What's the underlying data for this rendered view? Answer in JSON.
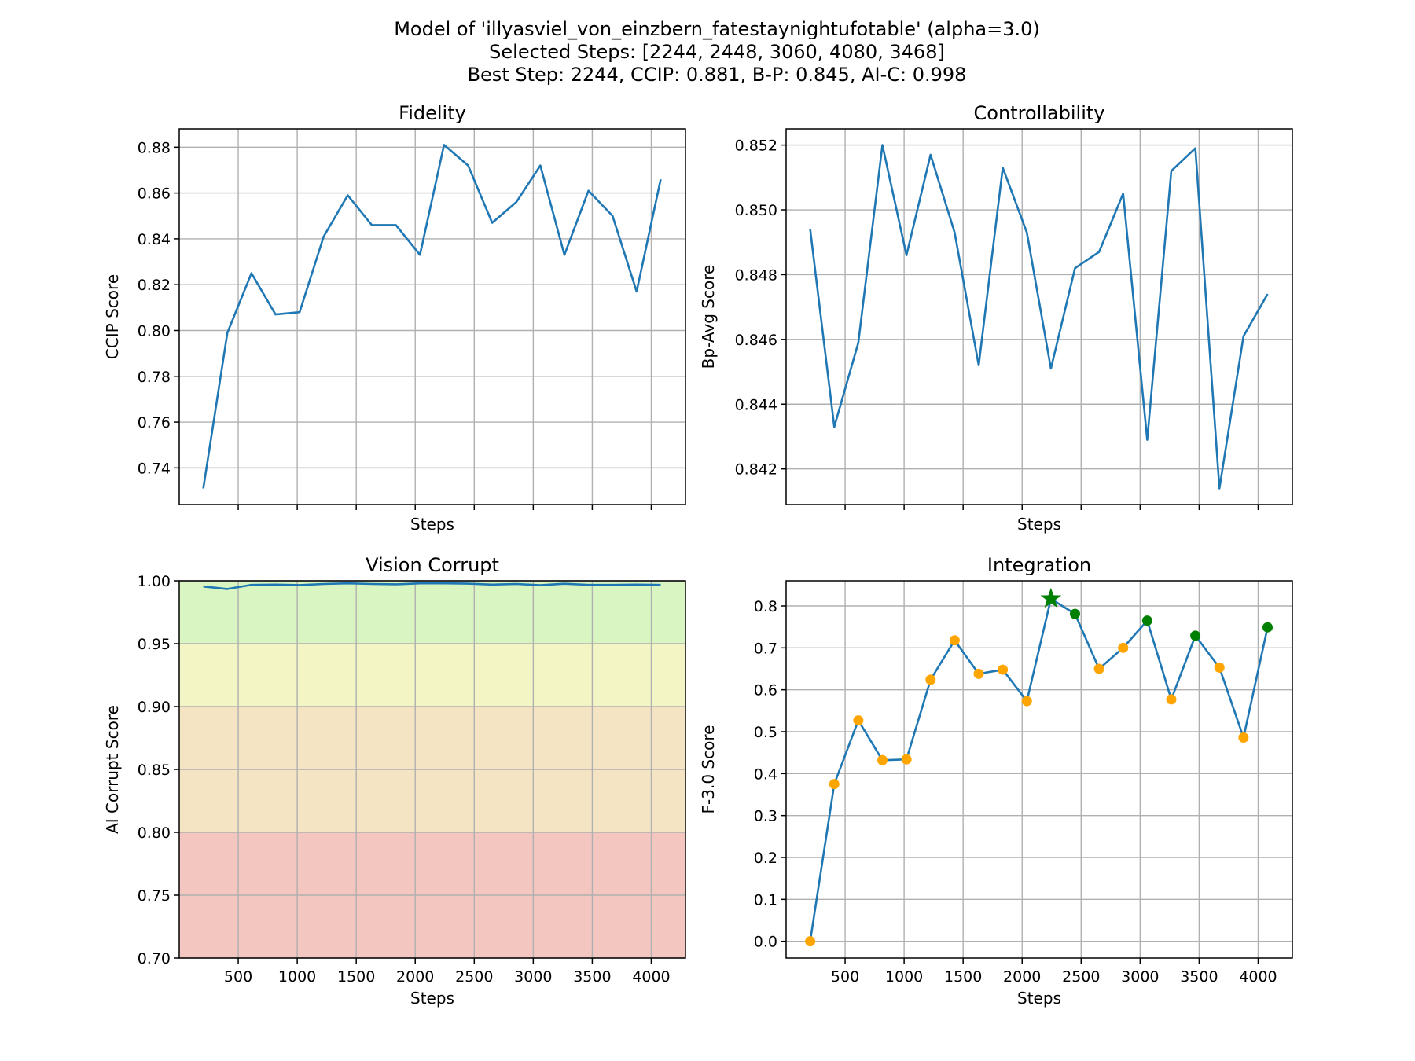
{
  "figure": {
    "title_lines": [
      "Model of 'illyasviel_von_einzbern_fatestaynightufotable' (alpha=3.0)",
      "Selected Steps: [2244, 2448, 3060, 4080, 3468]",
      "Best Step: 2244, CCIP: 0.881, B-P: 0.845, AI-C: 0.998"
    ]
  },
  "chart_data": [
    {
      "type": "line",
      "title": "Fidelity",
      "xlabel": "Steps",
      "ylabel": "CCIP Score",
      "xlim": [
        0,
        4290
      ],
      "ylim": [
        0.724,
        0.888
      ],
      "xticks": [
        500,
        1000,
        1500,
        2000,
        2500,
        3000,
        3500,
        4000
      ],
      "xticklabels_visible": false,
      "yticks": [
        0.74,
        0.76,
        0.78,
        0.8,
        0.82,
        0.84,
        0.86,
        0.88
      ],
      "yticklabels": [
        "0.74",
        "0.76",
        "0.78",
        "0.80",
        "0.82",
        "0.84",
        "0.86",
        "0.88"
      ],
      "grid": true,
      "color": "#1f77b4",
      "x": [
        204,
        408,
        612,
        816,
        1020,
        1224,
        1428,
        1632,
        1836,
        2040,
        2244,
        2448,
        2652,
        2856,
        3060,
        3264,
        3468,
        3672,
        3876,
        4080
      ],
      "y": [
        0.731,
        0.799,
        0.825,
        0.807,
        0.808,
        0.841,
        0.859,
        0.846,
        0.846,
        0.833,
        0.881,
        0.872,
        0.847,
        0.856,
        0.872,
        0.833,
        0.861,
        0.85,
        0.817,
        0.866
      ]
    },
    {
      "type": "line",
      "title": "Controllability",
      "xlabel": "Steps",
      "ylabel": "Bp-Avg Score",
      "xlim": [
        0,
        4290
      ],
      "ylim": [
        0.8409,
        0.8525
      ],
      "xticks": [
        500,
        1000,
        1500,
        2000,
        2500,
        3000,
        3500,
        4000
      ],
      "xticklabels_visible": false,
      "yticks": [
        0.842,
        0.844,
        0.846,
        0.848,
        0.85,
        0.852
      ],
      "yticklabels": [
        "0.842",
        "0.844",
        "0.846",
        "0.848",
        "0.850",
        "0.852"
      ],
      "grid": true,
      "color": "#1f77b4",
      "x": [
        204,
        408,
        612,
        816,
        1020,
        1224,
        1428,
        1632,
        1836,
        2040,
        2244,
        2448,
        2652,
        2856,
        3060,
        3264,
        3468,
        3672,
        3876,
        4080
      ],
      "y": [
        0.8494,
        0.8433,
        0.8459,
        0.852,
        0.8486,
        0.8517,
        0.8493,
        0.8452,
        0.8513,
        0.8493,
        0.8451,
        0.8482,
        0.8487,
        0.8505,
        0.8429,
        0.8512,
        0.8519,
        0.8414,
        0.8461,
        0.8474
      ]
    },
    {
      "type": "line",
      "title": "Vision Corrupt",
      "xlabel": "Steps",
      "ylabel": "AI Corrupt Score",
      "xlim": [
        0,
        4290
      ],
      "ylim": [
        0.7,
        1.0
      ],
      "xticks": [
        500,
        1000,
        1500,
        2000,
        2500,
        3000,
        3500,
        4000
      ],
      "xticklabels": [
        "500",
        "1000",
        "1500",
        "2000",
        "2500",
        "3000",
        "3500",
        "4000"
      ],
      "yticks": [
        0.7,
        0.75,
        0.8,
        0.85,
        0.9,
        0.95,
        1.0
      ],
      "yticklabels": [
        "0.70",
        "0.75",
        "0.80",
        "0.85",
        "0.90",
        "0.95",
        "1.00"
      ],
      "grid": true,
      "color": "#1f77b4",
      "bands": [
        {
          "from": 0.7,
          "to": 0.8,
          "color": "#f4c6c0"
        },
        {
          "from": 0.8,
          "to": 0.9,
          "color": "#f5e4c4"
        },
        {
          "from": 0.9,
          "to": 0.95,
          "color": "#f3f6c4"
        },
        {
          "from": 0.95,
          "to": 1.0,
          "color": "#d9f6c2"
        }
      ],
      "x": [
        204,
        408,
        612,
        816,
        1020,
        1224,
        1428,
        1632,
        1836,
        2040,
        2244,
        2448,
        2652,
        2856,
        3060,
        3264,
        3468,
        3672,
        3876,
        4080
      ],
      "y": [
        0.9955,
        0.9935,
        0.9968,
        0.997,
        0.9966,
        0.9975,
        0.998,
        0.9975,
        0.9972,
        0.998,
        0.998,
        0.9978,
        0.997,
        0.9975,
        0.9965,
        0.9977,
        0.9968,
        0.9968,
        0.997,
        0.9968
      ]
    },
    {
      "type": "line",
      "title": "Integration",
      "xlabel": "Steps",
      "ylabel": "F-3.0 Score",
      "xlim": [
        0,
        4290
      ],
      "ylim": [
        -0.04,
        0.86
      ],
      "xticks": [
        500,
        1000,
        1500,
        2000,
        2500,
        3000,
        3500,
        4000
      ],
      "xticklabels": [
        "500",
        "1000",
        "1500",
        "2000",
        "2500",
        "3000",
        "3500",
        "4000"
      ],
      "yticks": [
        0.0,
        0.1,
        0.2,
        0.3,
        0.4,
        0.5,
        0.6,
        0.7,
        0.8
      ],
      "yticklabels": [
        "0.0",
        "0.1",
        "0.2",
        "0.3",
        "0.4",
        "0.5",
        "0.6",
        "0.7",
        "0.8"
      ],
      "grid": true,
      "color": "#1f77b4",
      "marker_color_default": "#ffa500",
      "marker_color_selected": "#008000",
      "best_step": 2244,
      "selected_steps": [
        2244,
        2448,
        3060,
        4080,
        3468
      ],
      "x": [
        204,
        408,
        612,
        816,
        1020,
        1224,
        1428,
        1632,
        1836,
        2040,
        2244,
        2448,
        2652,
        2856,
        3060,
        3264,
        3468,
        3672,
        3876,
        4080
      ],
      "y": [
        0.0,
        0.375,
        0.527,
        0.432,
        0.434,
        0.624,
        0.718,
        0.638,
        0.648,
        0.573,
        0.817,
        0.781,
        0.65,
        0.7,
        0.765,
        0.577,
        0.729,
        0.653,
        0.486,
        0.749
      ]
    }
  ]
}
